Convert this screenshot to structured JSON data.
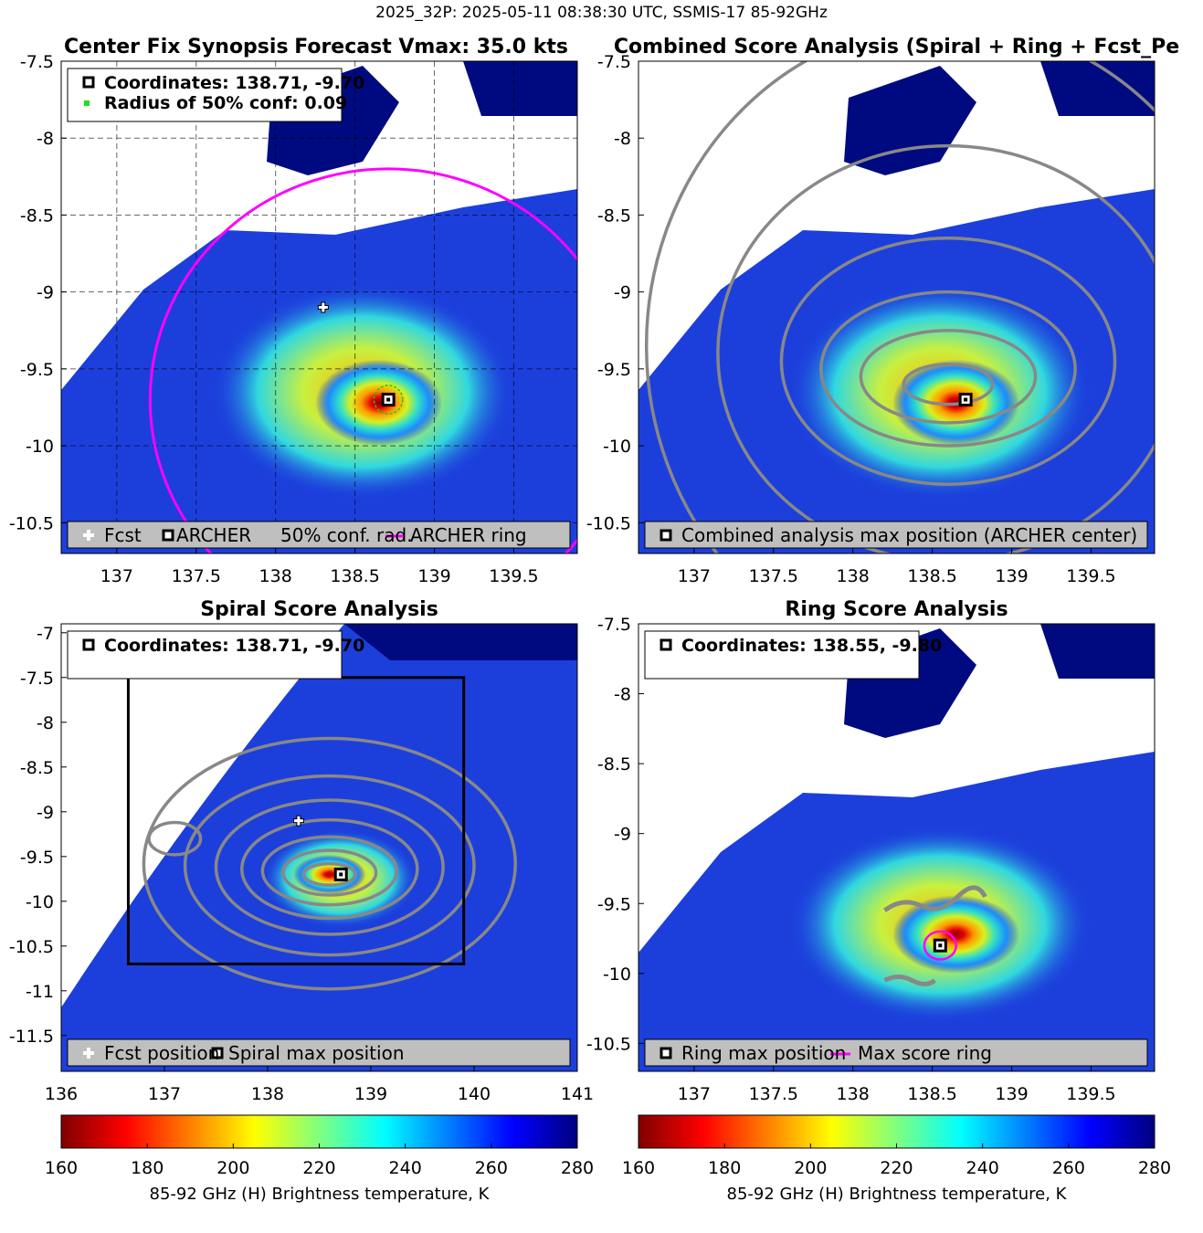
{
  "figure_title": "2025_32P: 2025-05-11 08:38:30 UTC, SSMIS-17 85-92GHz",
  "colors": {
    "ring": "#ff00ff",
    "contour": "#888888",
    "background_tb": "#1c3fdc",
    "missing": "#ffffff",
    "cold_blob": "#000a80",
    "legend_bg": "#bfbfbf"
  },
  "chart_data": [
    {
      "type": "heatmap",
      "panel": "top-left",
      "title": "Center Fix Synopsis",
      "title2": "Forecast Vmax: 35.0 kts",
      "xlim": [
        136.65,
        139.9
      ],
      "ylim": [
        -10.7,
        -7.5
      ],
      "xticks": [
        137,
        137.5,
        138,
        138.5,
        139,
        139.5
      ],
      "xtick_labels": [
        "137",
        "137.5",
        "138",
        "138.5",
        "139",
        "139.5"
      ],
      "yticks": [
        -7.5,
        -8,
        -8.5,
        -9,
        -9.5,
        -10,
        -10.5
      ],
      "ytick_labels": [
        "-7.5",
        "-8",
        "-8.5",
        "-9",
        "-9.5",
        "-10",
        "-10.5"
      ],
      "grid": true,
      "info_lines": [
        "Coordinates: 138.71, -9.70",
        "Radius of 50% conf: 0.09"
      ],
      "legend": [
        "Fcst",
        "ARCHER",
        "50% conf. rad.",
        "ARCHER ring"
      ],
      "fcst": [
        138.3,
        -9.1
      ],
      "center": [
        138.71,
        -9.7
      ],
      "conf_radius": 0.09,
      "ring_radius": 1.5
    },
    {
      "type": "heatmap",
      "panel": "top-right",
      "title": "Combined Score Analysis (Spiral + Ring + Fcst_Pe",
      "xlim": [
        136.65,
        139.9
      ],
      "ylim": [
        -10.7,
        -7.5
      ],
      "xticks": [
        137,
        137.5,
        138,
        138.5,
        139,
        139.5
      ],
      "xtick_labels": [
        "137",
        "137.5",
        "138",
        "138.5",
        "139",
        "139.5"
      ],
      "yticks": [
        -7.5,
        -8,
        -8.5,
        -9,
        -9.5,
        -10,
        -10.5
      ],
      "ytick_labels": [
        "-7.5",
        "-8",
        "-8.5",
        "-9",
        "-9.5",
        "-10",
        "-10.5"
      ],
      "grid": false,
      "legend": [
        "Combined analysis max position (ARCHER center)"
      ],
      "center": [
        138.71,
        -9.7
      ]
    },
    {
      "type": "heatmap",
      "panel": "bottom-left",
      "title": "Spiral Score Analysis",
      "xlim": [
        136,
        141
      ],
      "ylim": [
        -11.9,
        -6.9
      ],
      "xticks": [
        136,
        137,
        138,
        139,
        140,
        141
      ],
      "xtick_labels": [
        "136",
        "137",
        "138",
        "139",
        "140",
        "141"
      ],
      "yticks": [
        -7,
        -7.5,
        -8,
        -8.5,
        -9,
        -9.5,
        -10,
        -10.5,
        -11,
        -11.5
      ],
      "ytick_labels": [
        "-7",
        "-7.5",
        "-8",
        "-8.5",
        "-9",
        "-9.5",
        "-10",
        "-10.5",
        "-11",
        "-11.5"
      ],
      "grid": false,
      "info_lines": [
        "Coordinates: 138.71, -9.70"
      ],
      "legend": [
        "Fcst position",
        "Spiral max position"
      ],
      "fcst": [
        138.3,
        -9.1
      ],
      "center": [
        138.71,
        -9.7
      ],
      "search_box": {
        "x": [
          136.65,
          139.9
        ],
        "y": [
          -10.7,
          -7.5
        ]
      }
    },
    {
      "type": "heatmap",
      "panel": "bottom-right",
      "title": "Ring Score Analysis",
      "xlim": [
        136.65,
        139.9
      ],
      "ylim": [
        -10.7,
        -7.5
      ],
      "xticks": [
        137,
        137.5,
        138,
        138.5,
        139,
        139.5
      ],
      "xtick_labels": [
        "137",
        "137.5",
        "138",
        "138.5",
        "139",
        "139.5"
      ],
      "yticks": [
        -7.5,
        -8,
        -8.5,
        -9,
        -9.5,
        -10,
        -10.5
      ],
      "ytick_labels": [
        "-7.5",
        "-8",
        "-8.5",
        "-9",
        "-9.5",
        "-10",
        "-10.5"
      ],
      "grid": false,
      "info_lines": [
        "Coordinates: 138.55, -9.80"
      ],
      "legend": [
        "Ring max position",
        "Max score ring"
      ],
      "center": [
        138.55,
        -9.8
      ],
      "ring_radius": 0.1
    }
  ],
  "colorbars": [
    {
      "ticks": [
        "160",
        "180",
        "200",
        "220",
        "240",
        "260",
        "280"
      ],
      "range": [
        160,
        280
      ],
      "label": "85-92 GHz (H) Brightness temperature, K"
    },
    {
      "ticks": [
        "160",
        "180",
        "200",
        "220",
        "240",
        "260",
        "280"
      ],
      "range": [
        160,
        280
      ],
      "label": "85-92 GHz (H) Brightness temperature, K"
    }
  ]
}
